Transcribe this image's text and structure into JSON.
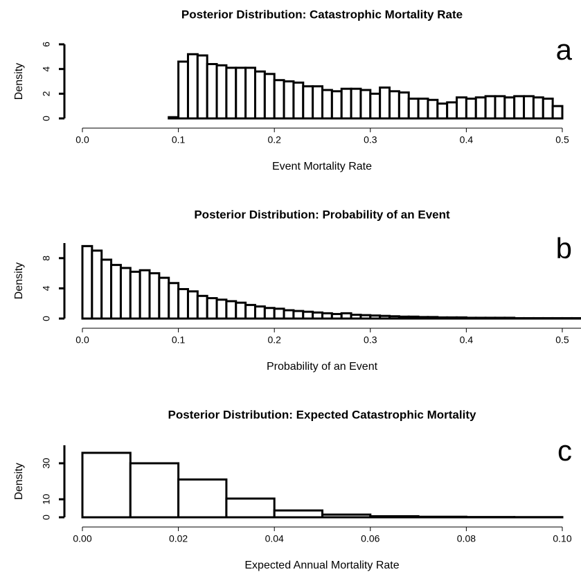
{
  "chart_data": [
    {
      "type": "histogram",
      "title": "Posterior Distribution: Catastrophic Mortality Rate",
      "annotation": "a",
      "x_label": "Event Mortality Rate",
      "y_label": "Density",
      "color": "#ffffff",
      "bins": [
        0,
        0.01,
        0.02,
        0.03,
        0.04,
        0.05,
        0.06,
        0.07,
        0.08,
        0.09,
        0.1,
        0.11,
        0.12,
        0.13,
        0.14,
        0.15,
        0.16,
        0.17,
        0.18,
        0.19,
        0.2,
        0.21,
        0.22,
        0.23,
        0.24,
        0.25,
        0.26,
        0.27,
        0.28,
        0.29,
        0.3,
        0.31,
        0.32,
        0.33,
        0.34,
        0.35,
        0.36,
        0.37,
        0.38,
        0.39,
        0.4,
        0.41,
        0.42,
        0.43,
        0.44,
        0.45,
        0.46,
        0.47,
        0.48,
        0.49,
        0.5
      ],
      "values": [
        0,
        0,
        0,
        0,
        0,
        0,
        0,
        0,
        0,
        0.1,
        4.6,
        5.2,
        5.1,
        4.4,
        4.3,
        4.1,
        4.1,
        4.1,
        3.8,
        3.6,
        3.1,
        3.0,
        2.9,
        2.6,
        2.6,
        2.3,
        2.2,
        2.4,
        2.4,
        2.3,
        2.0,
        2.5,
        2.2,
        2.1,
        1.6,
        1.6,
        1.5,
        1.2,
        1.3,
        1.7,
        1.6,
        1.7,
        1.8,
        1.8,
        1.7,
        1.8,
        1.8,
        1.7,
        1.6,
        1.0
      ],
      "xlim": [
        0,
        0.5
      ],
      "xticks": [
        {
          "value": 0,
          "label": "0.0"
        },
        0.1,
        0.2,
        0.3,
        0.4,
        0.5
      ],
      "ylim": [
        0,
        6
      ],
      "yticks": [
        0,
        2,
        4,
        6
      ]
    },
    {
      "type": "histogram",
      "title": "Posterior Distribution: Probability of an Event",
      "annotation": "b",
      "x_label": "Probability of an Event",
      "y_label": "Density",
      "color": "#ffffff",
      "bins": [
        0,
        0.01,
        0.02,
        0.03,
        0.04,
        0.05,
        0.06,
        0.07,
        0.08,
        0.09,
        0.1,
        0.11,
        0.12,
        0.13,
        0.14,
        0.15,
        0.16,
        0.17,
        0.18,
        0.19,
        0.2,
        0.21,
        0.22,
        0.23,
        0.24,
        0.25,
        0.26,
        0.27,
        0.28,
        0.29,
        0.3,
        0.31,
        0.32,
        0.33,
        0.34,
        0.35,
        0.36,
        0.37,
        0.38,
        0.39,
        0.4,
        0.41,
        0.42,
        0.43,
        0.44,
        0.45,
        0.46,
        0.47,
        0.48,
        0.49,
        0.5,
        0.51,
        0.52
      ],
      "values": [
        9.6,
        9.0,
        7.8,
        7.1,
        6.7,
        6.2,
        6.4,
        6.0,
        5.4,
        4.7,
        3.9,
        3.6,
        3.0,
        2.7,
        2.5,
        2.3,
        2.1,
        1.8,
        1.6,
        1.4,
        1.3,
        1.1,
        1.0,
        0.9,
        0.8,
        0.7,
        0.6,
        0.7,
        0.5,
        0.45,
        0.4,
        0.35,
        0.3,
        0.25,
        0.25,
        0.2,
        0.2,
        0.15,
        0.15,
        0.15,
        0.1,
        0.1,
        0.1,
        0.1,
        0.1,
        0.05,
        0.05,
        0.05,
        0.05,
        0.05,
        0.05,
        0.05
      ],
      "xlim": [
        0,
        0.52
      ],
      "xticks": [
        {
          "value": 0,
          "label": "0.0"
        },
        0.1,
        0.2,
        0.3,
        0.4,
        0.5
      ],
      "ylim": [
        0,
        10
      ],
      "yticks": [
        0,
        4,
        8
      ]
    },
    {
      "type": "histogram",
      "title": "Posterior Distribution: Expected Catastrophic Mortality",
      "annotation": "c",
      "x_label": "Expected Annual Mortality Rate",
      "y_label": "Density",
      "color": "#ffffff",
      "bins": [
        0,
        0.01,
        0.02,
        0.03,
        0.04,
        0.05,
        0.06,
        0.07,
        0.08,
        0.09,
        0.1
      ],
      "values": [
        35.8,
        30,
        21,
        10.4,
        3.8,
        1.5,
        0.6,
        0.3,
        0.15,
        0.1
      ],
      "xlim": [
        0,
        0.1
      ],
      "xticks": [
        {
          "value": 0,
          "label": "0.00"
        },
        {
          "value": 0.02,
          "label": "0.02"
        },
        {
          "value": 0.04,
          "label": "0.04"
        },
        {
          "value": 0.06,
          "label": "0.06"
        },
        {
          "value": 0.08,
          "label": "0.08"
        },
        {
          "value": 0.1,
          "label": "0.10"
        }
      ],
      "ylim": [
        0,
        40
      ],
      "yticks": [
        0,
        10,
        30
      ]
    }
  ]
}
